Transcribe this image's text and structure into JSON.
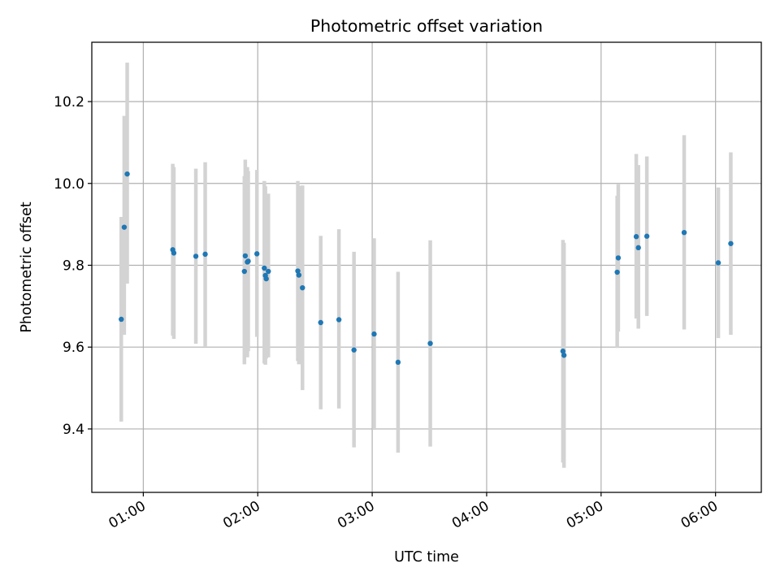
{
  "chart_data": {
    "type": "scatter",
    "title": "Photometric offset variation",
    "xlabel": "UTC time",
    "ylabel": "Photometric offset",
    "x_axis": "time",
    "xlim": [
      "00:33",
      "06:24"
    ],
    "ylim": [
      9.245,
      10.345
    ],
    "x_ticks": [
      "01:00",
      "02:00",
      "03:00",
      "04:00",
      "05:00",
      "06:00"
    ],
    "y_ticks": [
      9.4,
      9.6,
      9.8,
      10.0,
      10.2
    ],
    "y_tick_labels": [
      "9.4",
      "9.6",
      "9.8",
      "10.0",
      "10.2"
    ],
    "grid": true,
    "marker_color": "#1f77b4",
    "errorbar_color": "#d3d3d3",
    "series": [
      {
        "points": [
          {
            "x": "00:49",
            "y": 9.668,
            "ylo": 9.418,
            "yhi": 9.918
          },
          {
            "x": "00:50",
            "y": 9.893,
            "ylo": 9.63,
            "yhi": 10.165
          },
          {
            "x": "00:51",
            "y": 10.023,
            "ylo": 9.755,
            "yhi": 10.295
          },
          {
            "x": "01:16",
            "y": 9.838,
            "ylo": 9.628,
            "yhi": 10.048
          },
          {
            "x": "01:16",
            "y": 9.83,
            "ylo": 9.62,
            "yhi": 10.04
          },
          {
            "x": "01:27",
            "y": 9.822,
            "ylo": 9.608,
            "yhi": 10.036
          },
          {
            "x": "01:33",
            "y": 9.827,
            "ylo": 9.602,
            "yhi": 10.052
          },
          {
            "x": "01:53",
            "y": 9.785,
            "ylo": 9.558,
            "yhi": 10.018
          },
          {
            "x": "01:54",
            "y": 9.808,
            "ylo": 9.575,
            "yhi": 10.04
          },
          {
            "x": "01:54",
            "y": 9.823,
            "ylo": 9.588,
            "yhi": 10.058
          },
          {
            "x": "01:55",
            "y": 9.81,
            "ylo": 9.59,
            "yhi": 10.03
          },
          {
            "x": "01:59",
            "y": 9.828,
            "ylo": 9.625,
            "yhi": 10.033
          },
          {
            "x": "02:04",
            "y": 9.793,
            "ylo": 9.56,
            "yhi": 10.006
          },
          {
            "x": "02:04",
            "y": 9.775,
            "ylo": 9.557,
            "yhi": 9.993
          },
          {
            "x": "02:05",
            "y": 9.785,
            "ylo": 9.575,
            "yhi": 9.975
          },
          {
            "x": "02:05",
            "y": 9.767,
            "ylo": 9.572,
            "yhi": 9.962
          },
          {
            "x": "02:21",
            "y": 9.786,
            "ylo": 9.566,
            "yhi": 10.006
          },
          {
            "x": "02:21",
            "y": 9.776,
            "ylo": 9.558,
            "yhi": 9.994
          },
          {
            "x": "02:24",
            "y": 9.745,
            "ylo": 9.495,
            "yhi": 9.995
          },
          {
            "x": "02:33",
            "y": 9.66,
            "ylo": 9.448,
            "yhi": 9.872
          },
          {
            "x": "02:42",
            "y": 9.667,
            "ylo": 9.45,
            "yhi": 9.888
          },
          {
            "x": "02:51",
            "y": 9.593,
            "ylo": 9.355,
            "yhi": 9.833
          },
          {
            "x": "03:01",
            "y": 9.632,
            "ylo": 9.398,
            "yhi": 9.866
          },
          {
            "x": "03:13",
            "y": 9.563,
            "ylo": 9.342,
            "yhi": 9.784
          },
          {
            "x": "03:31",
            "y": 9.609,
            "ylo": 9.357,
            "yhi": 9.861
          },
          {
            "x": "04:40",
            "y": 9.59,
            "ylo": 9.318,
            "yhi": 9.862
          },
          {
            "x": "04:40",
            "y": 9.58,
            "ylo": 9.305,
            "yhi": 9.855
          },
          {
            "x": "05:09",
            "y": 9.783,
            "ylo": 9.598,
            "yhi": 9.97
          },
          {
            "x": "05:09",
            "y": 9.818,
            "ylo": 9.638,
            "yhi": 9.998
          },
          {
            "x": "05:19",
            "y": 9.843,
            "ylo": 9.645,
            "yhi": 10.045
          },
          {
            "x": "05:19",
            "y": 9.87,
            "ylo": 9.67,
            "yhi": 10.072
          },
          {
            "x": "05:24",
            "y": 9.871,
            "ylo": 9.676,
            "yhi": 10.066
          },
          {
            "x": "05:43",
            "y": 9.88,
            "ylo": 9.643,
            "yhi": 10.118
          },
          {
            "x": "06:02",
            "y": 9.806,
            "ylo": 9.622,
            "yhi": 9.99
          },
          {
            "x": "06:08",
            "y": 9.853,
            "ylo": 9.63,
            "yhi": 10.076
          }
        ]
      }
    ]
  }
}
